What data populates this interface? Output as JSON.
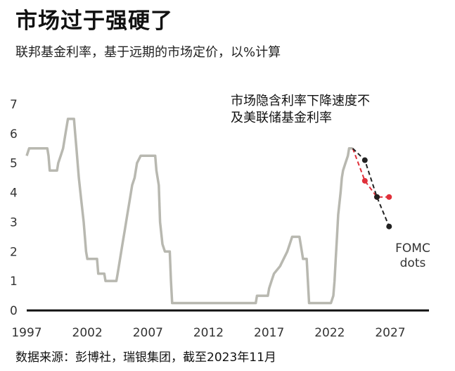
{
  "header": {
    "title": "市场过于强硬了",
    "subtitle": "联邦基金利率，基于远期的市场定价，以%计算"
  },
  "footer": {
    "source": "数据来源：彭博社，瑞银集团，截至2023年11月"
  },
  "chart_data": {
    "type": "line",
    "title": "市场过于强硬了",
    "subtitle": "联邦基金利率，基于远期的市场定价，以%计算",
    "xlim": [
      1997,
      2028
    ],
    "ylim": [
      0,
      7
    ],
    "xticks": [
      1997,
      2002,
      2007,
      2012,
      2017,
      2022,
      2027
    ],
    "yticks": [
      0,
      1,
      2,
      3,
      4,
      5,
      6,
      7
    ],
    "grid": false,
    "annotations": [
      {
        "lines": [
          "市场隐含利率下降速度不",
          "及美联储基金利率"
        ],
        "x": 2017,
        "y": 7
      },
      {
        "lines": [
          "FOMC",
          "dots"
        ],
        "x": 2026,
        "y": 2.2
      }
    ],
    "series": [
      {
        "key": "fed_funds",
        "color": "#b8b8b0",
        "style": "step",
        "points": [
          [
            1997.0,
            5.25
          ],
          [
            1997.2,
            5.5
          ],
          [
            1998.7,
            5.5
          ],
          [
            1998.8,
            5.25
          ],
          [
            1998.9,
            4.75
          ],
          [
            1999.5,
            4.75
          ],
          [
            1999.6,
            5.0
          ],
          [
            1999.8,
            5.25
          ],
          [
            2000.0,
            5.5
          ],
          [
            2000.2,
            6.0
          ],
          [
            2000.4,
            6.5
          ],
          [
            2000.9,
            6.5
          ],
          [
            2001.0,
            6.0
          ],
          [
            2001.1,
            5.5
          ],
          [
            2001.3,
            4.5
          ],
          [
            2001.5,
            3.75
          ],
          [
            2001.7,
            3.0
          ],
          [
            2001.8,
            2.5
          ],
          [
            2001.9,
            2.0
          ],
          [
            2002.0,
            1.75
          ],
          [
            2002.8,
            1.75
          ],
          [
            2002.9,
            1.25
          ],
          [
            2003.4,
            1.25
          ],
          [
            2003.5,
            1.0
          ],
          [
            2004.4,
            1.0
          ],
          [
            2004.5,
            1.25
          ],
          [
            2004.7,
            1.75
          ],
          [
            2004.9,
            2.25
          ],
          [
            2005.1,
            2.75
          ],
          [
            2005.3,
            3.25
          ],
          [
            2005.5,
            3.75
          ],
          [
            2005.7,
            4.25
          ],
          [
            2005.9,
            4.5
          ],
          [
            2006.1,
            5.0
          ],
          [
            2006.4,
            5.25
          ],
          [
            2007.6,
            5.25
          ],
          [
            2007.7,
            4.75
          ],
          [
            2007.8,
            4.5
          ],
          [
            2007.9,
            4.25
          ],
          [
            2008.0,
            3.0
          ],
          [
            2008.2,
            2.25
          ],
          [
            2008.4,
            2.0
          ],
          [
            2008.8,
            2.0
          ],
          [
            2008.9,
            1.0
          ],
          [
            2009.0,
            0.25
          ],
          [
            2015.9,
            0.25
          ],
          [
            2016.0,
            0.5
          ],
          [
            2016.9,
            0.5
          ],
          [
            2017.0,
            0.75
          ],
          [
            2017.2,
            1.0
          ],
          [
            2017.4,
            1.25
          ],
          [
            2017.9,
            1.5
          ],
          [
            2018.2,
            1.75
          ],
          [
            2018.5,
            2.0
          ],
          [
            2018.7,
            2.25
          ],
          [
            2018.9,
            2.5
          ],
          [
            2019.5,
            2.5
          ],
          [
            2019.6,
            2.25
          ],
          [
            2019.7,
            2.0
          ],
          [
            2019.8,
            1.75
          ],
          [
            2020.1,
            1.75
          ],
          [
            2020.2,
            1.0
          ],
          [
            2020.3,
            0.25
          ],
          [
            2022.1,
            0.25
          ],
          [
            2022.3,
            0.5
          ],
          [
            2022.4,
            1.0
          ],
          [
            2022.5,
            1.75
          ],
          [
            2022.6,
            2.5
          ],
          [
            2022.7,
            3.25
          ],
          [
            2022.9,
            4.0
          ],
          [
            2023.0,
            4.5
          ],
          [
            2023.1,
            4.75
          ],
          [
            2023.3,
            5.0
          ],
          [
            2023.5,
            5.25
          ],
          [
            2023.6,
            5.5
          ],
          [
            2023.9,
            5.5
          ]
        ]
      },
      {
        "key": "market_implied",
        "color": "#e0303a",
        "style": "dashed",
        "points": [
          [
            2023.9,
            5.5
          ],
          [
            2024.9,
            4.4
          ],
          [
            2025.9,
            3.85
          ],
          [
            2026.9,
            3.85
          ]
        ],
        "markers": [
          [
            2024.9,
            4.4
          ],
          [
            2025.9,
            3.85
          ],
          [
            2026.9,
            3.85
          ]
        ]
      },
      {
        "key": "fomc_dots",
        "color": "#222222",
        "style": "dashed",
        "points": [
          [
            2023.9,
            5.5
          ],
          [
            2024.9,
            5.1
          ],
          [
            2025.9,
            3.85
          ],
          [
            2026.9,
            2.85
          ]
        ],
        "markers": [
          [
            2024.9,
            5.1
          ],
          [
            2025.9,
            3.85
          ],
          [
            2026.9,
            2.85
          ]
        ]
      }
    ]
  }
}
